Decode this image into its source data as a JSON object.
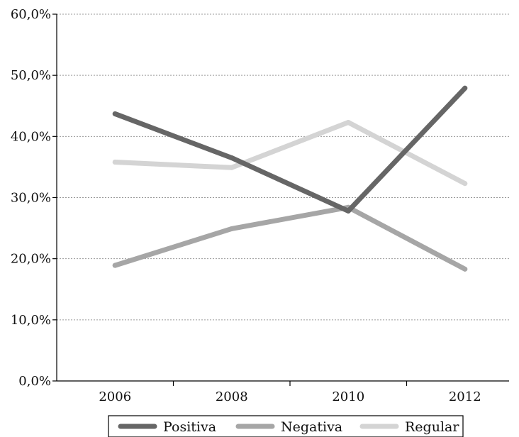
{
  "chart_data": {
    "type": "line",
    "categories": [
      "2006",
      "2008",
      "2010",
      "2012"
    ],
    "y_tick_labels": [
      "0,0%",
      "10,0%",
      "20,0%",
      "30,0%",
      "40,0%",
      "50,0%",
      "60,0%"
    ],
    "ylim": [
      0,
      60
    ],
    "grid": "horizontal-dotted",
    "legend_position": "bottom",
    "title": "",
    "xlabel": "",
    "ylabel": "",
    "series": [
      {
        "name": "Positiva",
        "values": [
          43.7,
          36.5,
          27.8,
          47.9
        ],
        "color": "#666666"
      },
      {
        "name": "Negativa",
        "values": [
          18.9,
          24.9,
          28.4,
          18.3
        ],
        "color": "#a6a6a6"
      },
      {
        "name": "Regular",
        "values": [
          35.8,
          34.9,
          42.3,
          32.3
        ],
        "color": "#d4d4d4"
      }
    ]
  }
}
